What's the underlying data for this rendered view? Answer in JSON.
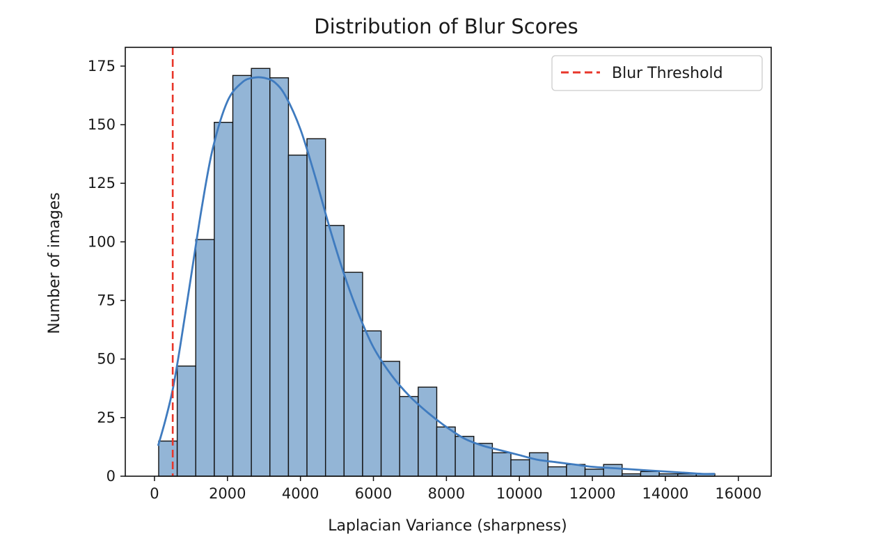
{
  "chart_data": {
    "type": "bar",
    "title": "Distribution of Blur Scores",
    "xlabel": "Laplacian Variance (sharpness)",
    "ylabel": "Number of images",
    "xlim": [
      -800,
      16900
    ],
    "ylim": [
      0,
      183
    ],
    "x_ticks": [
      0,
      2000,
      4000,
      6000,
      8000,
      10000,
      12000,
      14000,
      16000
    ],
    "y_ticks": [
      0,
      25,
      50,
      75,
      100,
      125,
      150,
      175
    ],
    "grid": false,
    "bin_width": 508,
    "bins": [
      {
        "x0": 115,
        "count": 15
      },
      {
        "x0": 623,
        "count": 47
      },
      {
        "x0": 1131,
        "count": 101
      },
      {
        "x0": 1639,
        "count": 151
      },
      {
        "x0": 2147,
        "count": 171
      },
      {
        "x0": 2655,
        "count": 174
      },
      {
        "x0": 3163,
        "count": 170
      },
      {
        "x0": 3671,
        "count": 137
      },
      {
        "x0": 4179,
        "count": 144
      },
      {
        "x0": 4687,
        "count": 107
      },
      {
        "x0": 5195,
        "count": 87
      },
      {
        "x0": 5703,
        "count": 62
      },
      {
        "x0": 6211,
        "count": 49
      },
      {
        "x0": 6719,
        "count": 34
      },
      {
        "x0": 7227,
        "count": 38
      },
      {
        "x0": 7735,
        "count": 21
      },
      {
        "x0": 8243,
        "count": 17
      },
      {
        "x0": 8751,
        "count": 14
      },
      {
        "x0": 9259,
        "count": 10
      },
      {
        "x0": 9767,
        "count": 7
      },
      {
        "x0": 10275,
        "count": 10
      },
      {
        "x0": 10783,
        "count": 4
      },
      {
        "x0": 11291,
        "count": 5
      },
      {
        "x0": 11799,
        "count": 3
      },
      {
        "x0": 12307,
        "count": 5
      },
      {
        "x0": 12815,
        "count": 1
      },
      {
        "x0": 13323,
        "count": 2
      },
      {
        "x0": 13831,
        "count": 1
      },
      {
        "x0": 14339,
        "count": 1
      },
      {
        "x0": 14847,
        "count": 1
      }
    ],
    "kde": {
      "x": [
        100,
        300,
        500,
        700,
        1000,
        1300,
        1600,
        2000,
        2400,
        2700,
        3000,
        3300,
        3600,
        4000,
        4400,
        4800,
        5200,
        5600,
        6000,
        6500,
        7000,
        7500,
        8000,
        8500,
        9000,
        9500,
        10000,
        10500,
        11000,
        11500,
        12000,
        12500,
        13000,
        13500,
        14000,
        14500,
        15000,
        15355
      ],
      "y": [
        13,
        24,
        37,
        55,
        85,
        115,
        140,
        160,
        168,
        170,
        170,
        168,
        162,
        148,
        128,
        106,
        86,
        69,
        55,
        43,
        34,
        27,
        21,
        16,
        13,
        11,
        9,
        7,
        6,
        5,
        4,
        3.5,
        3,
        2.5,
        2,
        1.5,
        1,
        1
      ]
    },
    "threshold": {
      "x": 500,
      "label": "Blur Threshold",
      "color": "#e8362a"
    },
    "legend_position": "top-right",
    "colors": {
      "bar_fill": "#93b5d6",
      "bar_edge": "#111111",
      "kde_line": "#3f7bbf"
    }
  }
}
